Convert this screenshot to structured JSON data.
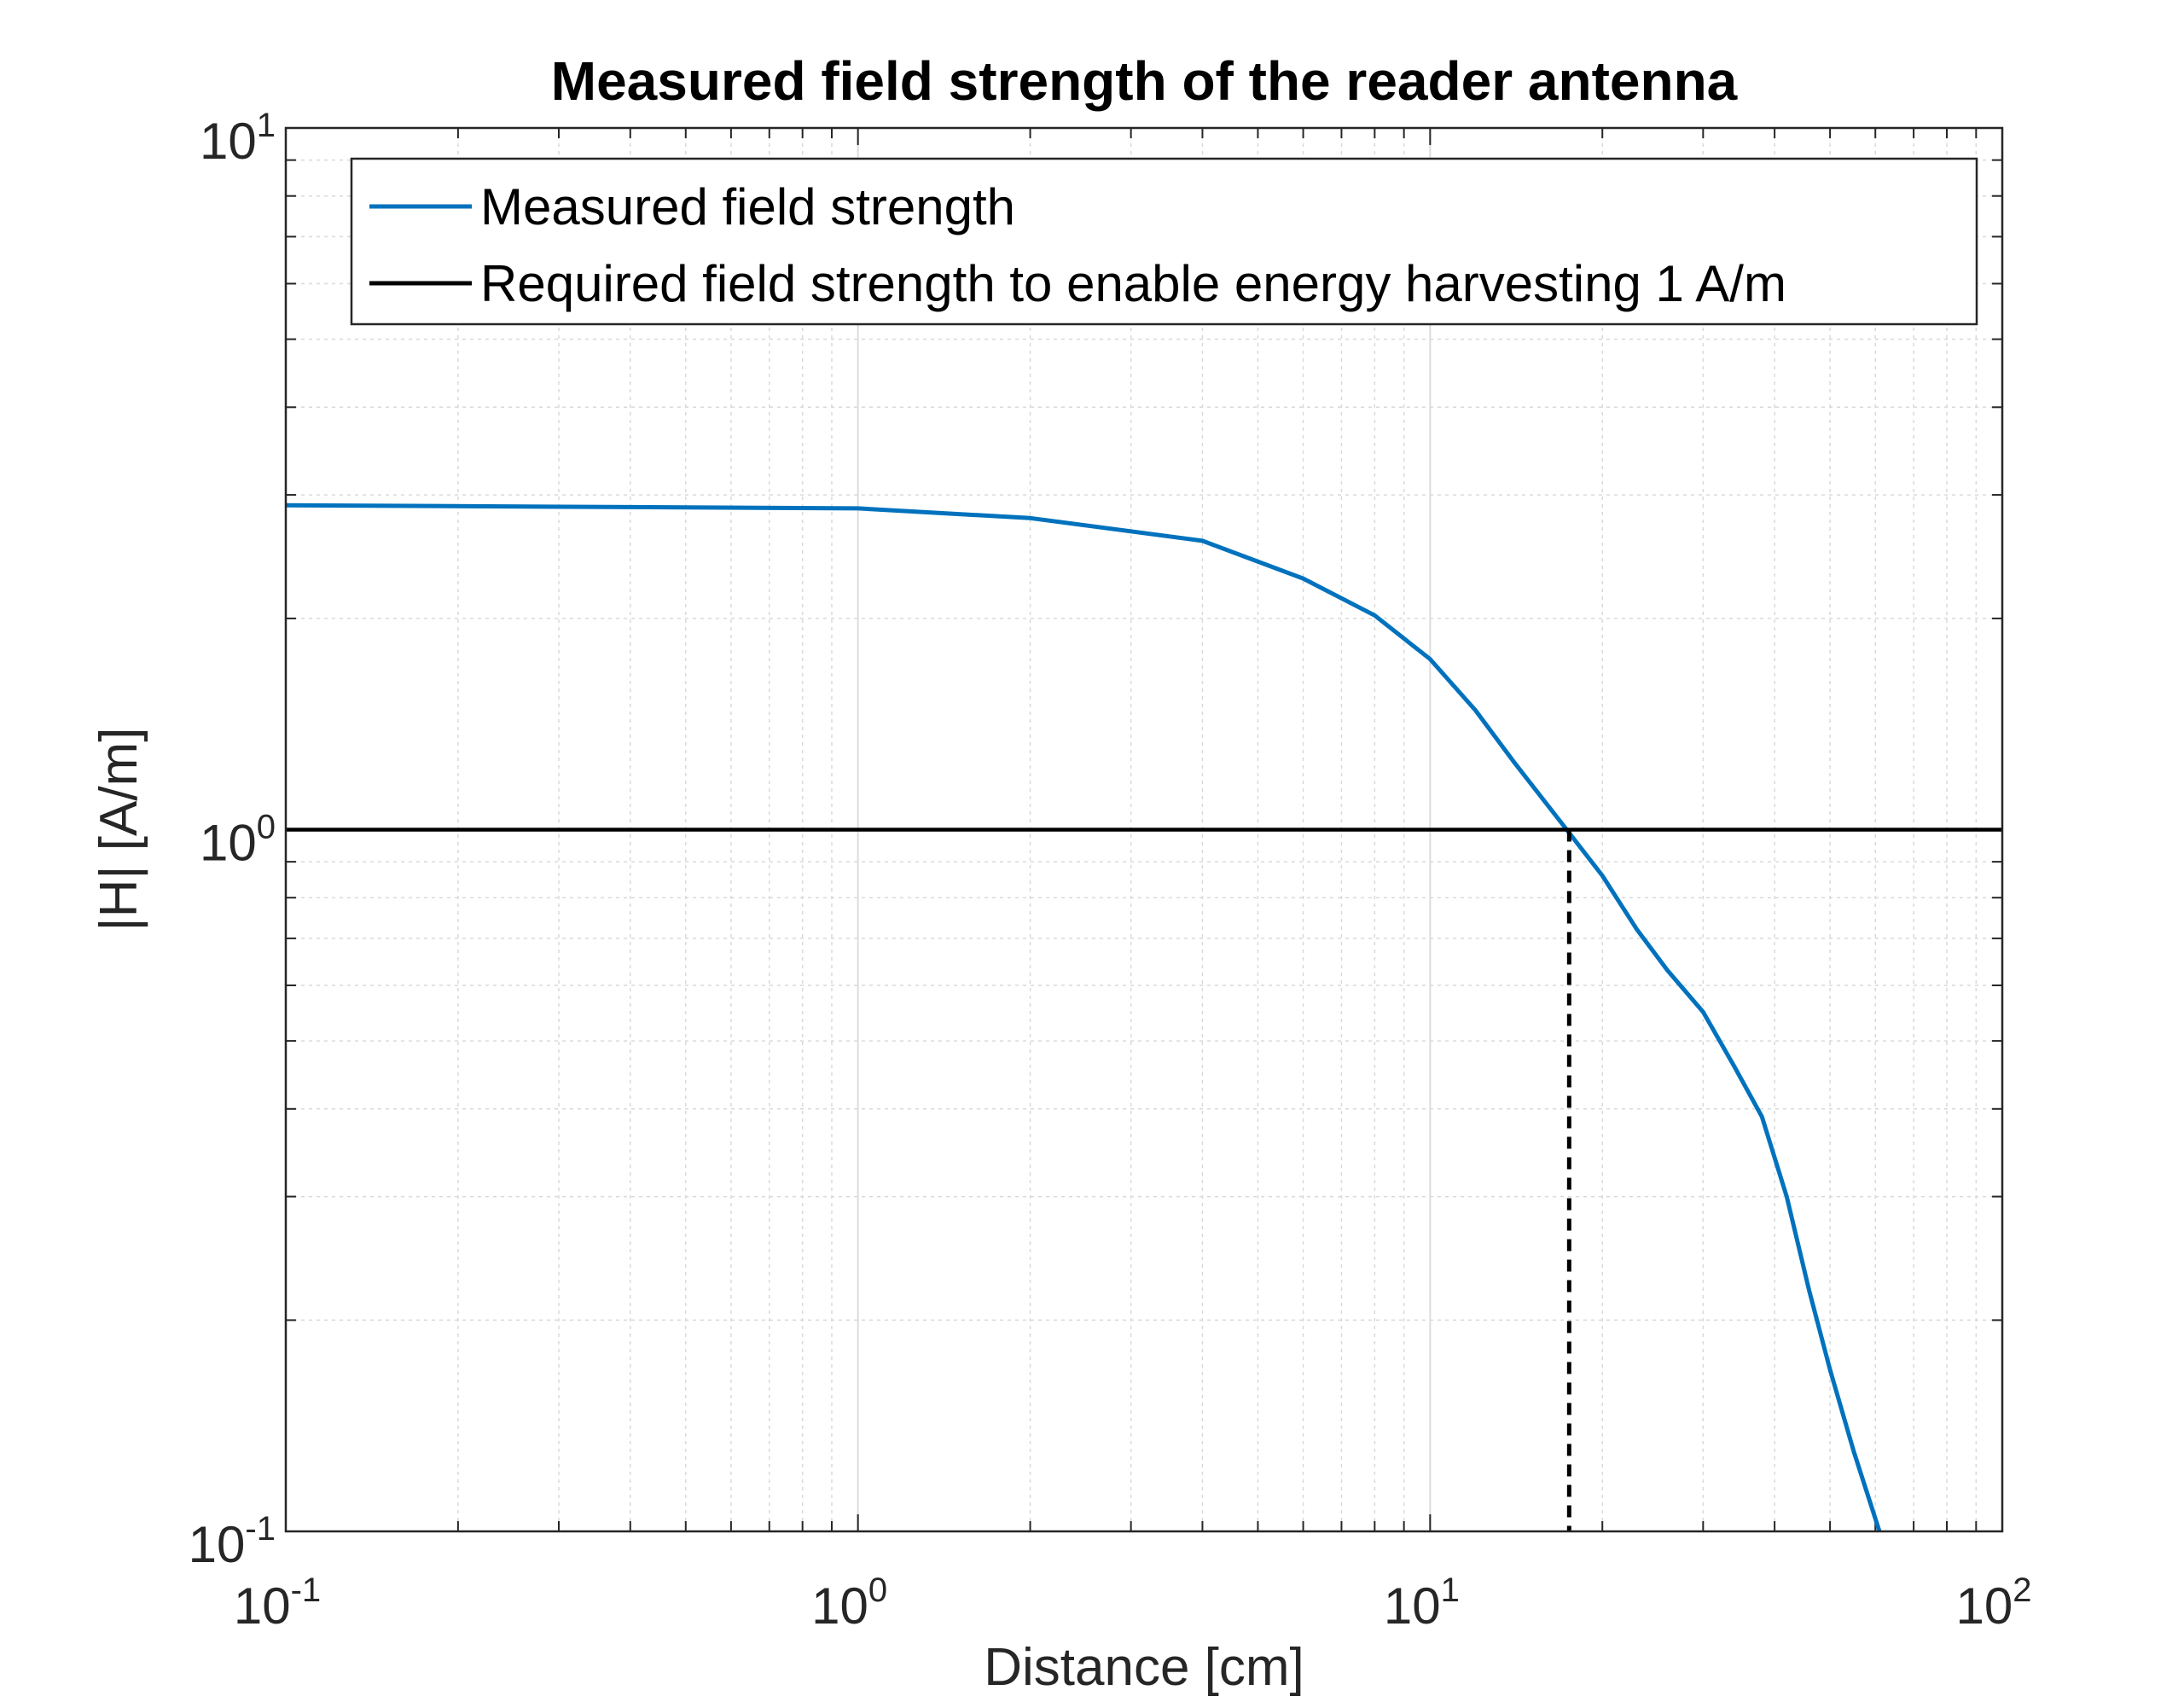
{
  "chart_data": {
    "type": "line",
    "title": "Measured field strength of the reader antenna",
    "xlabel": "Distance [cm]",
    "ylabel": "|H| [A/m]",
    "xscale": "log",
    "yscale": "log",
    "xlim": [
      0.1,
      100
    ],
    "ylim": [
      0.1,
      10
    ],
    "grid": true,
    "minor_grid": true,
    "legend_position": "top",
    "x_ticks": [
      {
        "base": "10",
        "exp": "-1"
      },
      {
        "base": "10",
        "exp": "0"
      },
      {
        "base": "10",
        "exp": "1"
      },
      {
        "base": "10",
        "exp": "2"
      }
    ],
    "y_ticks": [
      {
        "base": "10",
        "exp": "-1"
      },
      {
        "base": "10",
        "exp": "0"
      },
      {
        "base": "10",
        "exp": "1"
      }
    ],
    "series": [
      {
        "name": "Measured field strength",
        "color": "#0072BD",
        "x": [
          0.1,
          1,
          2,
          4,
          6,
          8,
          10,
          12,
          14,
          17,
          20,
          23,
          26,
          30,
          34,
          38,
          42,
          46,
          50,
          55,
          61
        ],
        "y": [
          2.9,
          2.87,
          2.78,
          2.58,
          2.28,
          2.02,
          1.75,
          1.48,
          1.25,
          1.02,
          0.86,
          0.72,
          0.63,
          0.55,
          0.46,
          0.39,
          0.3,
          0.22,
          0.17,
          0.13,
          0.1
        ]
      },
      {
        "name": "Required field strength to enable energy harvesting 1 A/m",
        "color": "#000000",
        "x": [
          0.1,
          100
        ],
        "y": [
          1,
          1
        ]
      }
    ],
    "annotations": [
      {
        "type": "vertical-dashed-line",
        "x": 17.5,
        "y_from": 0.1,
        "y_to": 1,
        "color": "#000000"
      }
    ]
  }
}
